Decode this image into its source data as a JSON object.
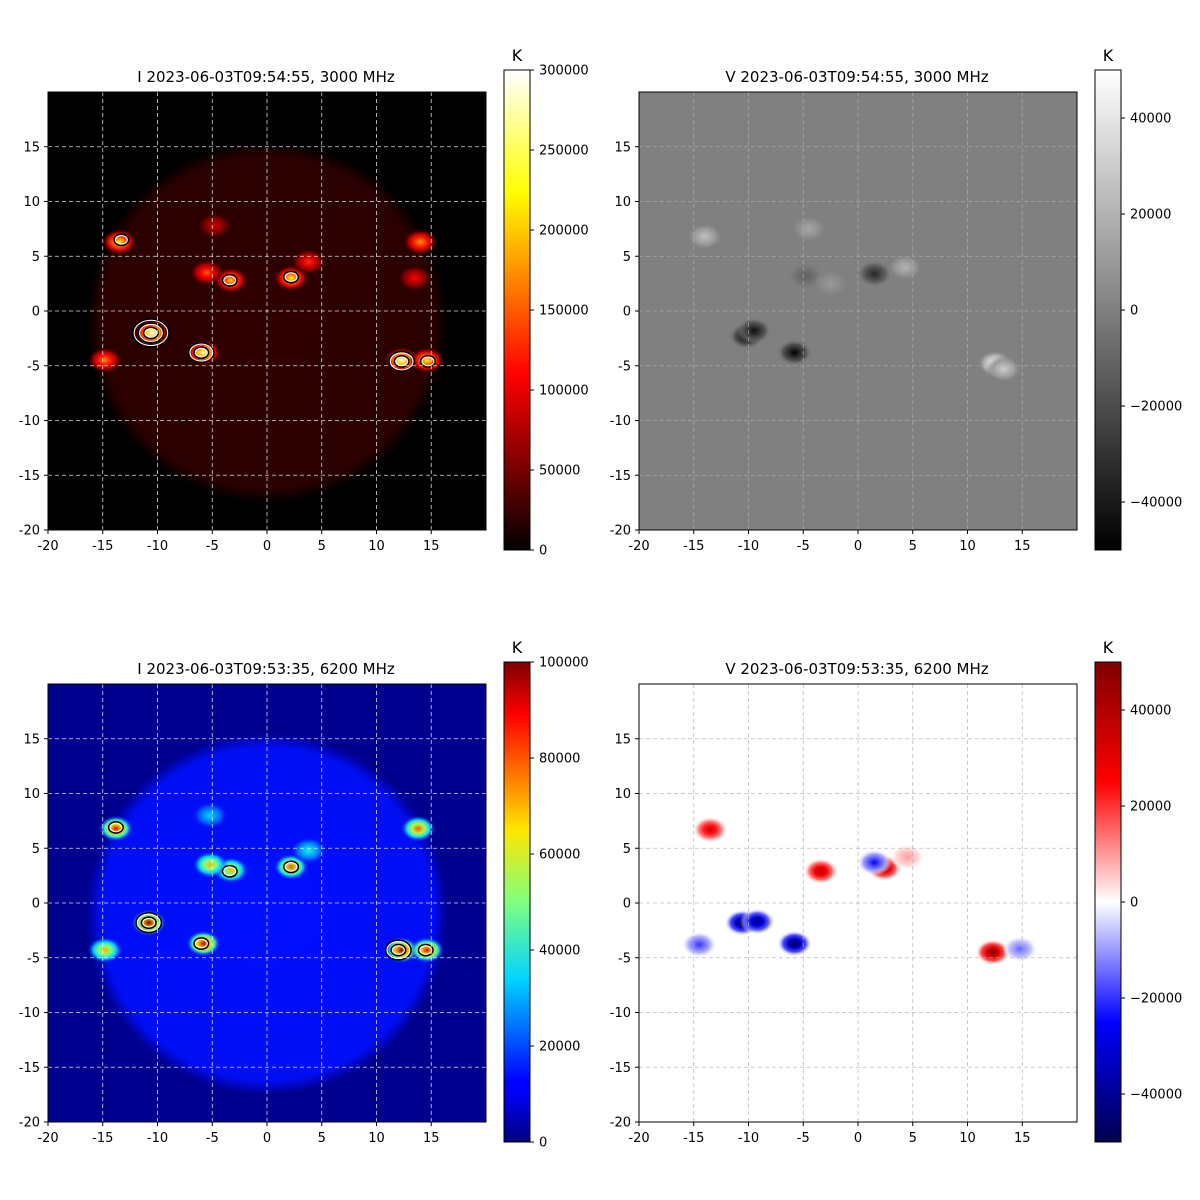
{
  "chart_data": [
    {
      "type": "heatmap",
      "title": "I 2023-06-03T09:54:55, 3000 MHz",
      "stokes": "I",
      "frequency": "3000 MHz",
      "xlim": [
        -20,
        20
      ],
      "ylim": [
        -20,
        20
      ],
      "x_ticks": [
        -20,
        -15,
        -10,
        -5,
        0,
        5,
        10,
        15
      ],
      "y_ticks": [
        -20,
        -15,
        -10,
        -5,
        0,
        5,
        10,
        15
      ],
      "grid": true,
      "colormap": "hot",
      "colorbar": {
        "label": "K",
        "min": 0,
        "max": 300000,
        "ticks": [
          0,
          50000,
          100000,
          150000,
          200000,
          250000,
          300000
        ]
      },
      "disk": {
        "cx": 0,
        "cy": -1,
        "r": 16.5,
        "level": 20000
      },
      "sources": [
        {
          "x": -10.5,
          "y": -2,
          "value": 300000
        },
        {
          "x": -5.8,
          "y": -3.8,
          "value": 280000
        },
        {
          "x": 12.3,
          "y": -4.5,
          "value": 290000
        },
        {
          "x": 14.6,
          "y": -4.5,
          "value": 220000
        },
        {
          "x": 2.2,
          "y": 3,
          "value": 220000
        },
        {
          "x": -3.3,
          "y": 2.8,
          "value": 200000
        },
        {
          "x": -13.5,
          "y": 6.3,
          "value": 220000
        },
        {
          "x": 14,
          "y": 6.3,
          "value": 180000
        },
        {
          "x": -14.8,
          "y": -4.5,
          "value": 170000
        },
        {
          "x": -5.5,
          "y": 3.5,
          "value": 150000
        },
        {
          "x": 3.8,
          "y": 4.5,
          "value": 130000
        },
        {
          "x": -4.8,
          "y": 7.8,
          "value": 90000
        },
        {
          "x": 13.5,
          "y": 3,
          "value": 110000
        }
      ],
      "contours": [
        {
          "x": -10.6,
          "y": -2.0,
          "levels": 3
        },
        {
          "x": -6.0,
          "y": -3.8,
          "levels": 2
        },
        {
          "x": 12.3,
          "y": -4.6,
          "levels": 2
        },
        {
          "x": 14.7,
          "y": -4.6,
          "levels": 1
        },
        {
          "x": 2.2,
          "y": 3.1,
          "levels": 1
        },
        {
          "x": -3.4,
          "y": 2.8,
          "levels": 1
        },
        {
          "x": -13.3,
          "y": 6.5,
          "levels": 1
        }
      ]
    },
    {
      "type": "heatmap",
      "title": "V 2023-06-03T09:54:55, 3000 MHz",
      "stokes": "V",
      "frequency": "3000 MHz",
      "xlim": [
        -20,
        20
      ],
      "ylim": [
        -20,
        20
      ],
      "x_ticks": [
        -20,
        -15,
        -10,
        -5,
        0,
        5,
        10,
        15
      ],
      "y_ticks": [
        -20,
        -15,
        -10,
        -5,
        0,
        5,
        10,
        15
      ],
      "grid": true,
      "colormap": "gray",
      "colorbar": {
        "label": "K",
        "min": -50000,
        "max": 50000,
        "ticks": [
          -40000,
          -20000,
          0,
          20000,
          40000
        ]
      },
      "sources": [
        {
          "x": -10.2,
          "y": -2.3,
          "value": -50000
        },
        {
          "x": -9.5,
          "y": -1.8,
          "value": -45000
        },
        {
          "x": -5.8,
          "y": -3.8,
          "value": -50000
        },
        {
          "x": 12.5,
          "y": -4.8,
          "value": 50000
        },
        {
          "x": 13.3,
          "y": -5.3,
          "value": 30000
        },
        {
          "x": 1.5,
          "y": 3.4,
          "value": -35000
        },
        {
          "x": 4.3,
          "y": 4,
          "value": 20000
        },
        {
          "x": -14,
          "y": 6.8,
          "value": 25000
        },
        {
          "x": -4.5,
          "y": 7.5,
          "value": 15000
        },
        {
          "x": -4.8,
          "y": 3.2,
          "value": -12000
        },
        {
          "x": -2.5,
          "y": 2.5,
          "value": 10000
        }
      ]
    },
    {
      "type": "heatmap",
      "title": "I 2023-06-03T09:53:35, 6200 MHz",
      "stokes": "I",
      "frequency": "6200 MHz",
      "xlim": [
        -20,
        20
      ],
      "ylim": [
        -20,
        20
      ],
      "x_ticks": [
        -20,
        -15,
        -10,
        -5,
        0,
        5,
        10,
        15
      ],
      "y_ticks": [
        -20,
        -15,
        -10,
        -5,
        0,
        5,
        10,
        15
      ],
      "grid": true,
      "colormap": "jet",
      "colorbar": {
        "label": "K",
        "min": 0,
        "max": 100000,
        "ticks": [
          0,
          20000,
          40000,
          60000,
          80000,
          100000
        ]
      },
      "disk": {
        "cx": 0,
        "cy": -1,
        "r": 16.5,
        "level": 14000
      },
      "sources": [
        {
          "x": -10.8,
          "y": -1.8,
          "value": 100000
        },
        {
          "x": -5.8,
          "y": -3.7,
          "value": 95000
        },
        {
          "x": 12.3,
          "y": -4.3,
          "value": 100000
        },
        {
          "x": 14.6,
          "y": -4.3,
          "value": 90000
        },
        {
          "x": -13.8,
          "y": 6.8,
          "value": 90000
        },
        {
          "x": 2.2,
          "y": 3.3,
          "value": 80000
        },
        {
          "x": -3.3,
          "y": 3,
          "value": 70000
        },
        {
          "x": -5.2,
          "y": 3.5,
          "value": 70000
        },
        {
          "x": 13.8,
          "y": 6.8,
          "value": 80000
        },
        {
          "x": -14.8,
          "y": -4.3,
          "value": 70000
        },
        {
          "x": 3.8,
          "y": 4.8,
          "value": 40000
        },
        {
          "x": -5.2,
          "y": 8,
          "value": 35000
        }
      ],
      "contours": [
        {
          "x": -10.8,
          "y": -1.8,
          "levels": 2
        },
        {
          "x": -6.0,
          "y": -3.7,
          "levels": 1
        },
        {
          "x": 12.0,
          "y": -4.3,
          "levels": 2
        },
        {
          "x": 14.5,
          "y": -4.3,
          "levels": 1
        },
        {
          "x": 2.2,
          "y": 3.3,
          "levels": 1
        },
        {
          "x": -3.4,
          "y": 2.9,
          "levels": 1
        },
        {
          "x": -13.8,
          "y": 6.9,
          "levels": 1
        }
      ]
    },
    {
      "type": "heatmap",
      "title": "V 2023-06-03T09:53:35, 6200 MHz",
      "stokes": "V",
      "frequency": "6200 MHz",
      "xlim": [
        -20,
        20
      ],
      "ylim": [
        -20,
        20
      ],
      "x_ticks": [
        -20,
        -15,
        -10,
        -5,
        0,
        5,
        10,
        15
      ],
      "y_ticks": [
        -20,
        -15,
        -10,
        -5,
        0,
        5,
        10,
        15
      ],
      "grid": true,
      "colormap": "seismic",
      "colorbar": {
        "label": "K",
        "min": -50000,
        "max": 50000,
        "ticks": [
          -40000,
          -20000,
          0,
          20000,
          40000
        ]
      },
      "sources": [
        {
          "x": -10.6,
          "y": -1.8,
          "value": -50000
        },
        {
          "x": -9.2,
          "y": -1.7,
          "value": -45000
        },
        {
          "x": -5.8,
          "y": -3.7,
          "value": -50000
        },
        {
          "x": 12.3,
          "y": -4.5,
          "value": 50000
        },
        {
          "x": 2.4,
          "y": 3.2,
          "value": 45000
        },
        {
          "x": -13.5,
          "y": 6.7,
          "value": 35000
        },
        {
          "x": -3.4,
          "y": 2.9,
          "value": 40000
        },
        {
          "x": 1.5,
          "y": 3.7,
          "value": -25000
        },
        {
          "x": 14.8,
          "y": -4.2,
          "value": -15000
        },
        {
          "x": -14.5,
          "y": -3.8,
          "value": -20000
        },
        {
          "x": 4.5,
          "y": 4.2,
          "value": 10000
        }
      ]
    }
  ]
}
